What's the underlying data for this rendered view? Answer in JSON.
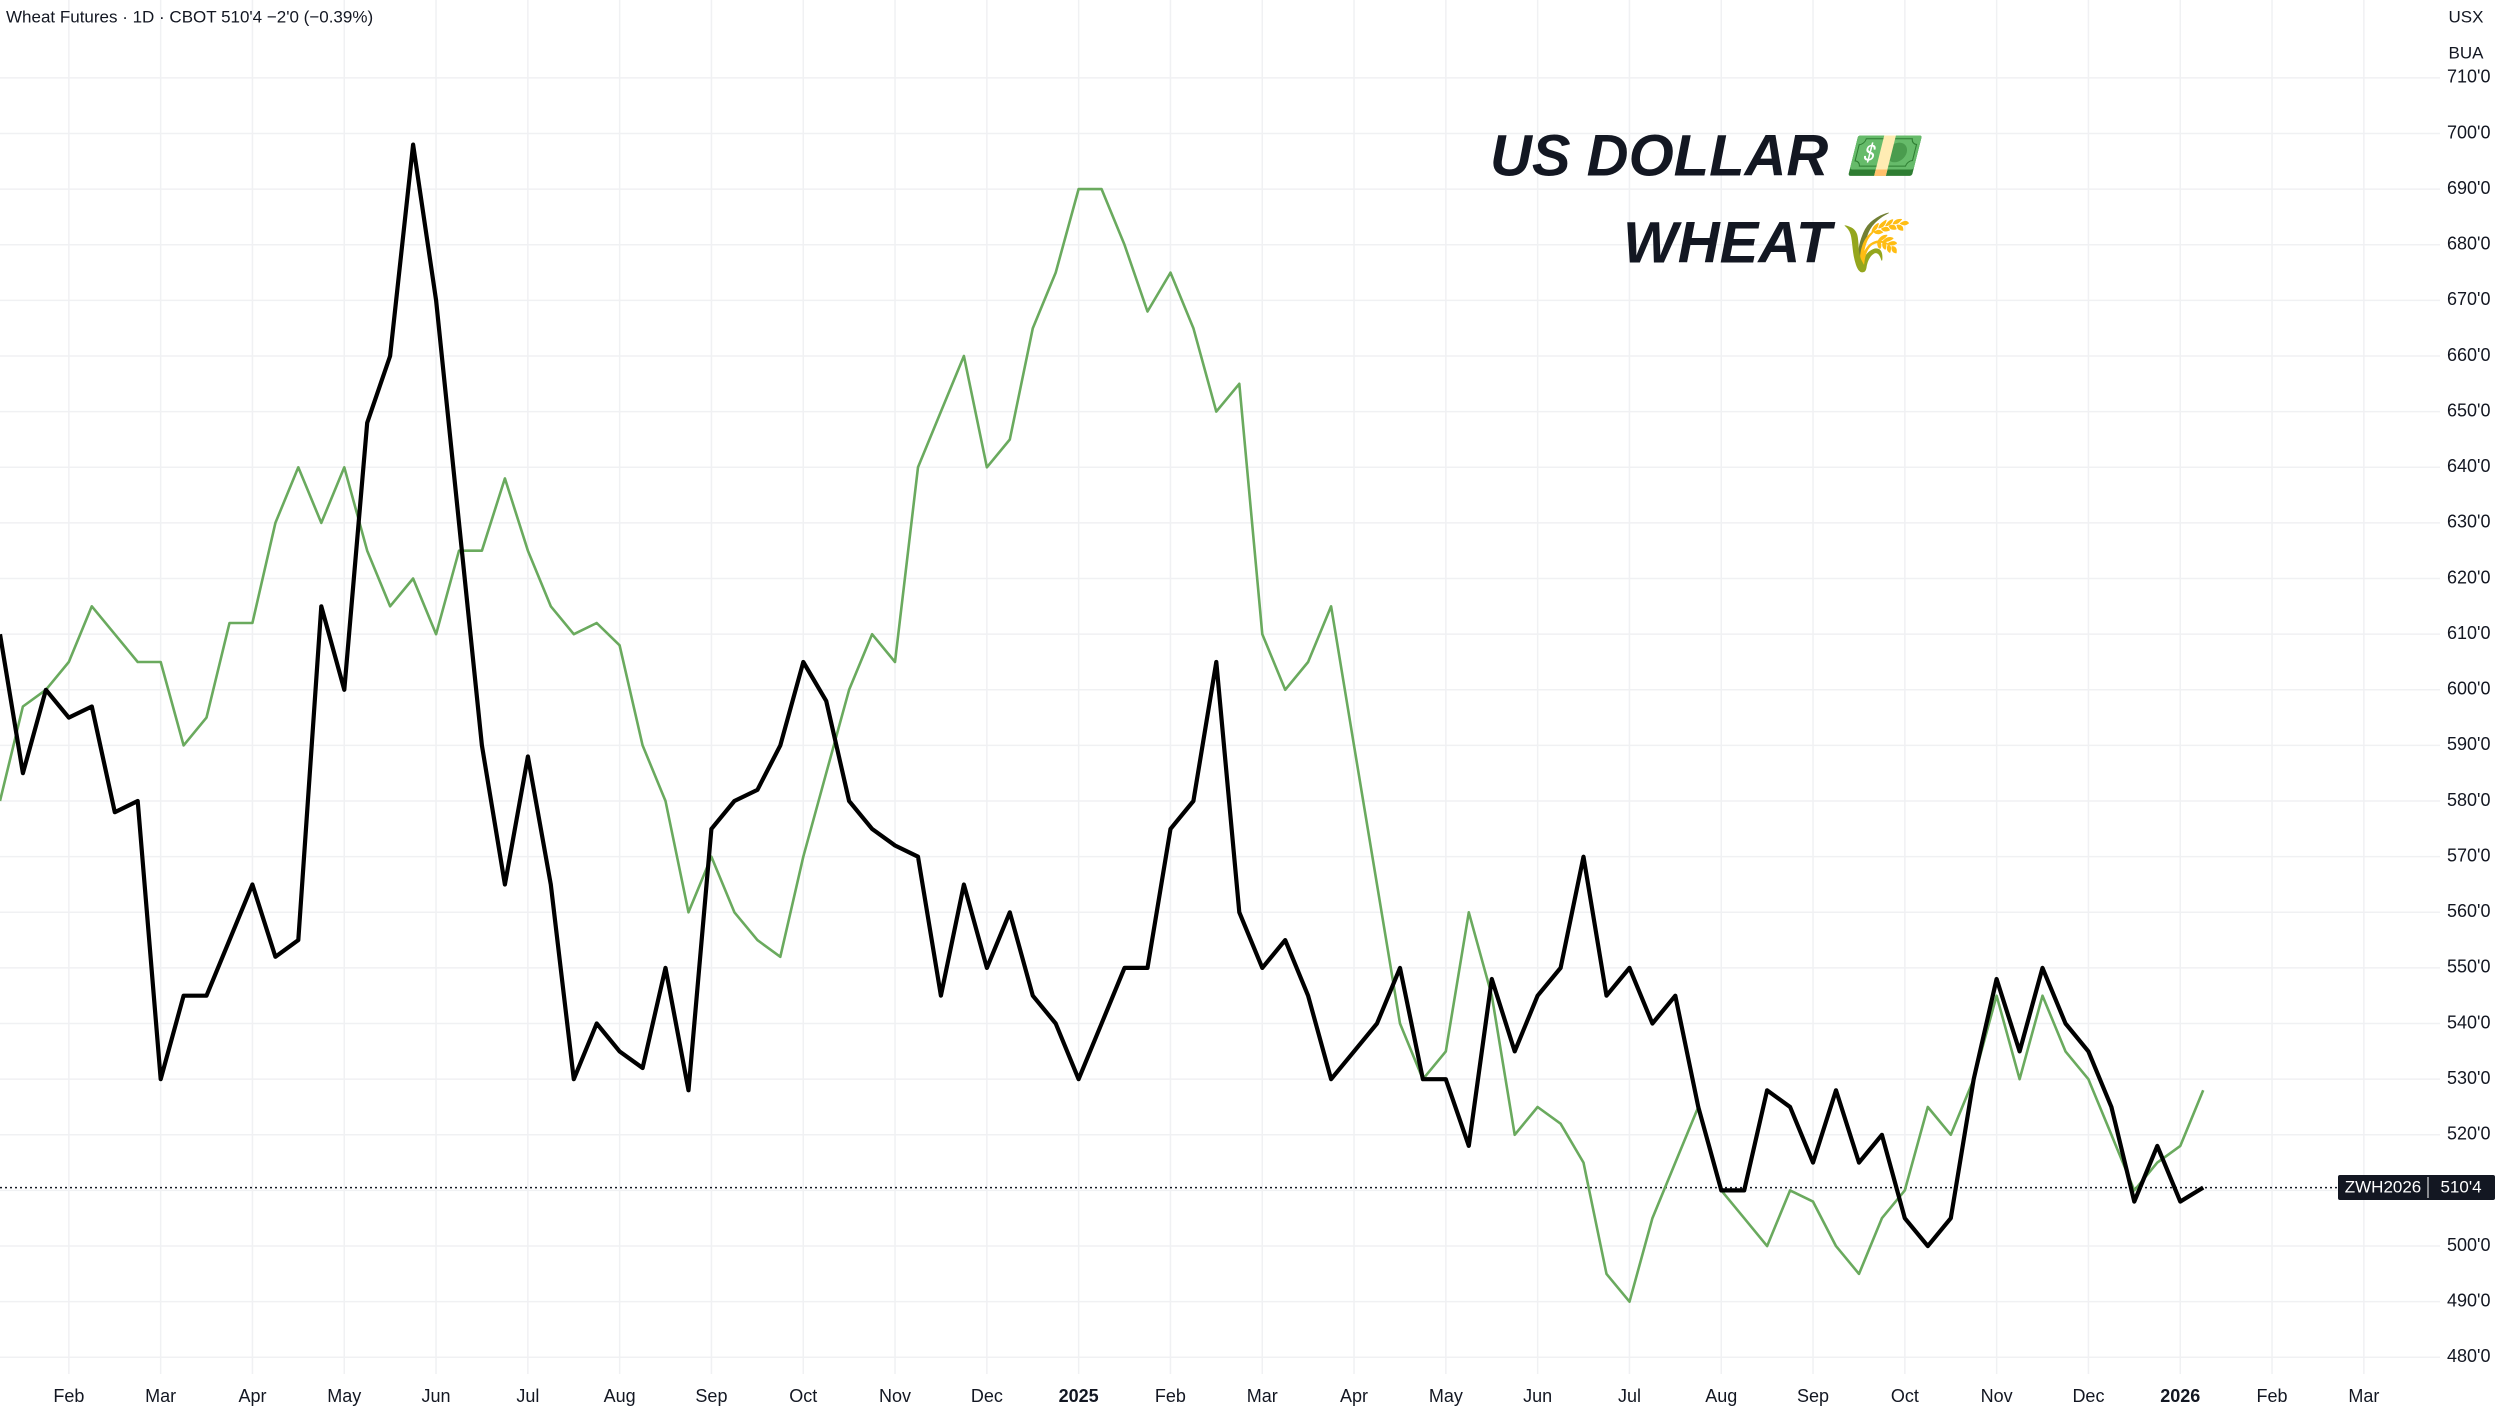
{
  "chart_data": {
    "type": "line",
    "title": "Wheat Futures · 1D · CBOT  510'4  −2'0 (−0.39%)",
    "unit_labels": [
      "USX",
      "BUA"
    ],
    "annotations": [
      {
        "text": "US DOLLAR 💵",
        "color": "#5a9a4e"
      },
      {
        "text": "WHEAT🌾",
        "color": "#000000"
      }
    ],
    "symbol": "ZWH2026",
    "last_price": {
      "value": 510.5,
      "label": "510'4"
    },
    "grid": true,
    "ylim": [
      477,
      724
    ],
    "yticks": [
      {
        "value": 480,
        "label": "480'0"
      },
      {
        "value": 490,
        "label": "490'0"
      },
      {
        "value": 500,
        "label": "500'0"
      },
      {
        "value": 510,
        "label": "510'0"
      },
      {
        "value": 520,
        "label": "520'0"
      },
      {
        "value": 530,
        "label": "530'0"
      },
      {
        "value": 540,
        "label": "540'0"
      },
      {
        "value": 550,
        "label": "550'0"
      },
      {
        "value": 560,
        "label": "560'0"
      },
      {
        "value": 570,
        "label": "570'0"
      },
      {
        "value": 580,
        "label": "580'0"
      },
      {
        "value": 590,
        "label": "590'0"
      },
      {
        "value": 600,
        "label": "600'0"
      },
      {
        "value": 610,
        "label": "610'0"
      },
      {
        "value": 620,
        "label": "620'0"
      },
      {
        "value": 630,
        "label": "630'0"
      },
      {
        "value": 640,
        "label": "640'0"
      },
      {
        "value": 650,
        "label": "650'0"
      },
      {
        "value": 660,
        "label": "660'0"
      },
      {
        "value": 670,
        "label": "670'0"
      },
      {
        "value": 680,
        "label": "680'0"
      },
      {
        "value": 690,
        "label": "690'0"
      },
      {
        "value": 700,
        "label": "700'0"
      },
      {
        "value": 710,
        "label": "710'0"
      }
    ],
    "categories": [
      null,
      null,
      null,
      "Feb",
      null,
      null,
      null,
      "Mar",
      null,
      null,
      null,
      "Apr",
      null,
      null,
      null,
      "May",
      null,
      null,
      null,
      "Jun",
      null,
      null,
      null,
      "Jul",
      null,
      null,
      null,
      "Aug",
      null,
      null,
      null,
      "Sep",
      null,
      null,
      null,
      "Oct",
      null,
      null,
      null,
      "Nov",
      null,
      null,
      null,
      "Dec",
      null,
      null,
      null,
      "2025",
      null,
      null,
      null,
      "Feb",
      null,
      null,
      null,
      "Mar",
      null,
      null,
      null,
      "Apr",
      null,
      null,
      null,
      "May",
      null,
      null,
      null,
      "Jun",
      null,
      null,
      null,
      "Jul",
      null,
      null,
      null,
      "Aug",
      null,
      null,
      null,
      "Sep",
      null,
      null,
      null,
      "Oct",
      null,
      null,
      null,
      "Nov",
      null,
      null,
      null,
      "Dec",
      null,
      null,
      null,
      "2026",
      null,
      null,
      null,
      "Feb",
      null,
      null,
      null,
      "Mar"
    ],
    "series": [
      {
        "name": "US DOLLAR",
        "color": "#6aaa5e",
        "values": [
          580,
          597,
          600,
          605,
          615,
          610,
          605,
          605,
          590,
          595,
          612,
          612,
          630,
          640,
          630,
          640,
          625,
          615,
          620,
          610,
          625,
          625,
          638,
          625,
          615,
          610,
          612,
          608,
          590,
          580,
          560,
          570,
          560,
          555,
          552,
          570,
          585,
          600,
          610,
          605,
          640,
          650,
          660,
          640,
          645,
          665,
          675,
          690,
          690,
          680,
          668,
          675,
          665,
          650,
          655,
          610,
          600,
          605,
          615,
          590,
          565,
          540,
          530,
          535,
          560,
          545,
          520,
          525,
          522,
          515,
          495,
          490,
          505,
          515,
          525,
          510,
          505,
          500,
          510,
          508,
          500,
          495,
          505,
          510,
          525,
          520,
          530,
          545,
          530,
          545,
          535,
          530,
          520,
          510,
          515,
          518,
          528,
          null,
          null,
          null,
          null,
          null,
          null,
          null
        ]
      },
      {
        "name": "WHEAT",
        "color": "#000000",
        "values": [
          610,
          585,
          600,
          595,
          597,
          578,
          580,
          530,
          545,
          545,
          555,
          565,
          552,
          555,
          615,
          600,
          648,
          660,
          698,
          670,
          630,
          590,
          565,
          588,
          565,
          530,
          540,
          535,
          532,
          550,
          528,
          575,
          580,
          582,
          590,
          605,
          598,
          580,
          575,
          572,
          570,
          545,
          565,
          550,
          560,
          545,
          540,
          530,
          540,
          550,
          550,
          575,
          580,
          605,
          560,
          550,
          555,
          545,
          530,
          535,
          540,
          550,
          530,
          530,
          518,
          548,
          535,
          545,
          550,
          570,
          545,
          550,
          540,
          545,
          525,
          510,
          510,
          528,
          525,
          515,
          528,
          515,
          520,
          505,
          500,
          505,
          530,
          548,
          535,
          550,
          540,
          535,
          525,
          508,
          518,
          508,
          510.5,
          null,
          null,
          null,
          null,
          null,
          null,
          null
        ]
      }
    ]
  }
}
